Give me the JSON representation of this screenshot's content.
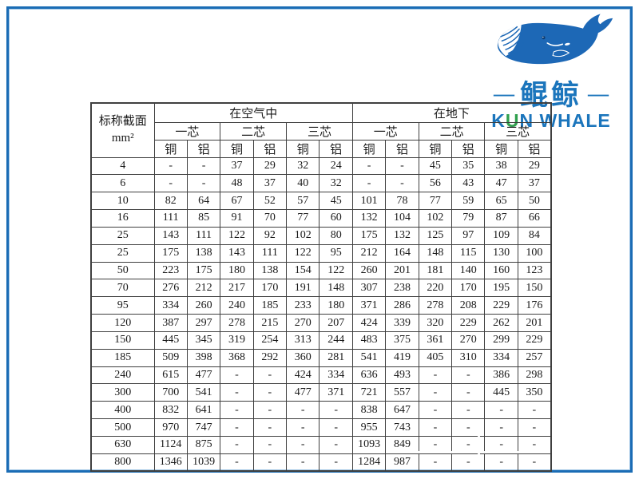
{
  "logo": {
    "cn_name": "鲲鲸",
    "dash": "—",
    "en_k": "K",
    "en_u": "U",
    "en_rest": "N WHALE",
    "blue": "#1b75bc",
    "green": "#2fa04d",
    "whale_color": "#1d68b6"
  },
  "chart_data": {
    "type": "table",
    "corner_header": [
      "标称截面",
      "mm²"
    ],
    "groups": [
      "在空气中",
      "在地下"
    ],
    "sub_headers": [
      "一芯",
      "二芯",
      "三芯",
      "一芯",
      "二芯",
      "三芯"
    ],
    "material_headers": [
      "铜",
      "铝",
      "铜",
      "铝",
      "铜",
      "铝",
      "铜",
      "铝",
      "铜",
      "铝",
      "铜",
      "铝"
    ],
    "rows": [
      [
        "4",
        "-",
        "-",
        "37",
        "29",
        "32",
        "24",
        "-",
        "-",
        "45",
        "35",
        "38",
        "29"
      ],
      [
        "6",
        "-",
        "-",
        "48",
        "37",
        "40",
        "32",
        "-",
        "-",
        "56",
        "43",
        "47",
        "37"
      ],
      [
        "10",
        "82",
        "64",
        "67",
        "52",
        "57",
        "45",
        "101",
        "78",
        "77",
        "59",
        "65",
        "50"
      ],
      [
        "16",
        "111",
        "85",
        "91",
        "70",
        "77",
        "60",
        "132",
        "104",
        "102",
        "79",
        "87",
        "66"
      ],
      [
        "25",
        "143",
        "111",
        "122",
        "92",
        "102",
        "80",
        "175",
        "132",
        "125",
        "97",
        "109",
        "84"
      ],
      [
        "25",
        "175",
        "138",
        "143",
        "111",
        "122",
        "95",
        "212",
        "164",
        "148",
        "115",
        "130",
        "100"
      ],
      [
        "50",
        "223",
        "175",
        "180",
        "138",
        "154",
        "122",
        "260",
        "201",
        "181",
        "140",
        "160",
        "123"
      ],
      [
        "70",
        "276",
        "212",
        "217",
        "170",
        "191",
        "148",
        "307",
        "238",
        "220",
        "170",
        "195",
        "150"
      ],
      [
        "95",
        "334",
        "260",
        "240",
        "185",
        "233",
        "180",
        "371",
        "286",
        "278",
        "208",
        "229",
        "176"
      ],
      [
        "120",
        "387",
        "297",
        "278",
        "215",
        "270",
        "207",
        "424",
        "339",
        "320",
        "229",
        "262",
        "201"
      ],
      [
        "150",
        "445",
        "345",
        "319",
        "254",
        "313",
        "244",
        "483",
        "375",
        "361",
        "270",
        "299",
        "229"
      ],
      [
        "185",
        "509",
        "398",
        "368",
        "292",
        "360",
        "281",
        "541",
        "419",
        "405",
        "310",
        "334",
        "257"
      ],
      [
        "240",
        "615",
        "477",
        "-",
        "-",
        "424",
        "334",
        "636",
        "493",
        "-",
        "-",
        "386",
        "298"
      ],
      [
        "300",
        "700",
        "541",
        "-",
        "-",
        "477",
        "371",
        "721",
        "557",
        "-",
        "-",
        "445",
        "350"
      ],
      [
        "400",
        "832",
        "641",
        "-",
        "-",
        "-",
        "-",
        "838",
        "647",
        "-",
        "-",
        "-",
        "-"
      ],
      [
        "500",
        "970",
        "747",
        "-",
        "-",
        "-",
        "-",
        "955",
        "743",
        "-",
        "-",
        "-",
        "-"
      ],
      [
        "630",
        "1124",
        "875",
        "-",
        "-",
        "-",
        "-",
        "1093",
        "849",
        "-",
        "-",
        "-",
        "-"
      ],
      [
        "800",
        "1346",
        "1039",
        "-",
        "-",
        "-",
        "-",
        "1284",
        "987",
        "-",
        "-",
        "-",
        "-"
      ]
    ]
  }
}
